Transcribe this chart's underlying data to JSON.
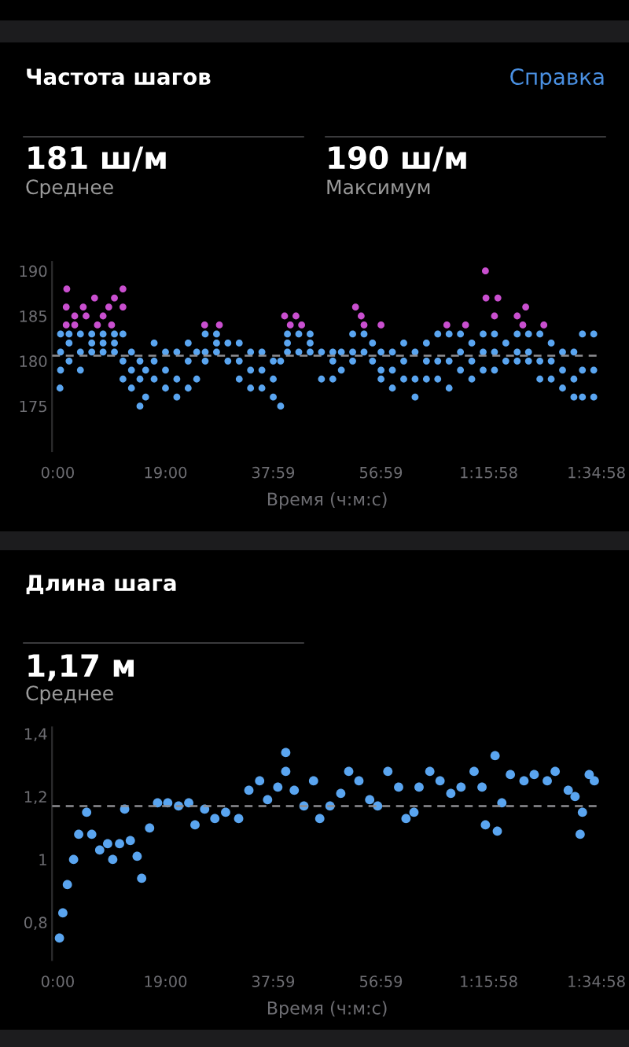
{
  "chart_data": [
    {
      "type": "scatter",
      "title": "Частота шагов",
      "xlabel": "Время (ч:м:с)",
      "annotations": [
        "Справка",
        "181 ш/м",
        "Среднее",
        "190 ш/м",
        "Максимум"
      ],
      "xlim": [
        -1,
        96
      ],
      "xticks": [
        {
          "value": 0,
          "label": "0:00"
        },
        {
          "value": 19,
          "label": "19:00"
        },
        {
          "value": 37.98,
          "label": "37:59"
        },
        {
          "value": 56.98,
          "label": "56:59"
        },
        {
          "value": 75.97,
          "label": "1:15:58"
        },
        {
          "value": 94.97,
          "label": "1:34:58"
        }
      ],
      "ylim": [
        170,
        191
      ],
      "yticks": [
        175,
        180,
        185,
        190
      ],
      "marker": "circle",
      "ref_lines": [
        {
          "axis": "y",
          "value": 180.6,
          "color": "#8e8e93",
          "line_style": "dashed"
        }
      ],
      "series": [
        {
          "color": "#5aa5f0",
          "x": [
            0.4,
            0.5,
            0.5,
            0.5,
            2,
            2,
            2,
            4,
            4,
            4,
            6,
            6,
            6,
            8,
            8,
            8,
            10,
            10,
            10,
            11.5,
            11.5,
            11.5,
            13,
            13,
            13,
            14.5,
            14.5,
            14.5,
            15.5,
            15.5,
            17,
            17,
            17,
            19,
            19,
            19,
            21,
            21,
            21,
            23,
            23,
            23,
            24.5,
            24.5,
            26,
            26,
            26,
            28,
            28,
            28,
            30,
            30,
            32,
            32,
            32,
            34,
            34,
            34,
            36,
            36,
            36,
            38,
            38,
            38,
            39.3,
            39.3,
            40.5,
            40.5,
            40.5,
            42.5,
            42.5,
            44.5,
            44.5,
            44.5,
            46.5,
            46.5,
            48.5,
            48.5,
            48.5,
            50,
            50,
            52,
            52,
            52,
            54,
            54,
            55.5,
            55.5,
            57,
            57,
            57,
            59,
            59,
            59,
            61,
            61,
            61,
            63,
            63,
            63,
            65,
            65,
            65,
            67,
            67,
            67,
            69,
            69,
            69,
            71,
            71,
            71,
            73,
            73,
            73,
            75,
            75,
            75,
            77,
            77,
            77,
            79,
            79,
            81,
            81,
            81,
            83,
            83,
            83,
            85,
            85,
            85,
            87,
            87,
            87,
            89,
            89,
            89,
            91,
            91,
            91,
            92.5,
            92.5,
            92.5,
            94.5,
            94.5,
            94.5
          ],
          "values": [
            177,
            183,
            181,
            179,
            183,
            182,
            180,
            183,
            181,
            179,
            183,
            182,
            181,
            183,
            182,
            181,
            183,
            182,
            181,
            183,
            180,
            178,
            181,
            179,
            177,
            180,
            178,
            175,
            179,
            176,
            182,
            180,
            178,
            181,
            179,
            177,
            181,
            178,
            176,
            182,
            180,
            177,
            181,
            178,
            183,
            181,
            180,
            183,
            182,
            181,
            182,
            180,
            182,
            180,
            178,
            181,
            179,
            177,
            181,
            179,
            177,
            180,
            178,
            176,
            180,
            175,
            183,
            182,
            181,
            183,
            181,
            183,
            182,
            181,
            181,
            178,
            181,
            180,
            178,
            181,
            179,
            183,
            181,
            180,
            183,
            181,
            182,
            180,
            181,
            179,
            178,
            181,
            179,
            177,
            182,
            180,
            178,
            181,
            178,
            176,
            182,
            180,
            178,
            183,
            180,
            178,
            183,
            180,
            177,
            183,
            181,
            179,
            182,
            180,
            178,
            183,
            181,
            179,
            183,
            181,
            179,
            182,
            180,
            183,
            181,
            180,
            183,
            181,
            180,
            183,
            180,
            178,
            182,
            180,
            178,
            181,
            179,
            177,
            181,
            178,
            176,
            183,
            179,
            176,
            183,
            179,
            176
          ]
        },
        {
          "color": "#c94fcf",
          "x": [
            1.5,
            1.5,
            1.6,
            3,
            3,
            4.5,
            5,
            6.5,
            7,
            8,
            9,
            9.5,
            10,
            11.5,
            11.5,
            25.9,
            28.5,
            40,
            41,
            42,
            43,
            52.5,
            53.5,
            54,
            57,
            68.6,
            71.9,
            75.4,
            75.5,
            77,
            77.6,
            81,
            82,
            82.5,
            85.7
          ],
          "values": [
            184,
            186,
            188,
            185,
            184,
            186,
            185,
            187,
            184,
            185,
            186,
            184,
            187,
            188,
            186,
            184,
            184,
            185,
            184,
            185,
            184,
            186,
            185,
            184,
            184,
            184,
            184,
            190,
            187,
            185,
            187,
            185,
            184,
            186,
            184
          ]
        }
      ]
    },
    {
      "type": "scatter",
      "title": "Длина шага",
      "xlabel": "Время (ч:м:с)",
      "annotations": [
        "1,17 м",
        "Среднее"
      ],
      "xlim": [
        -1,
        96
      ],
      "xticks": [
        {
          "value": 0,
          "label": "0:00"
        },
        {
          "value": 19,
          "label": "19:00"
        },
        {
          "value": 37.98,
          "label": "37:59"
        },
        {
          "value": 56.98,
          "label": "56:59"
        },
        {
          "value": 75.97,
          "label": "1:15:58"
        },
        {
          "value": 94.97,
          "label": "1:34:58"
        }
      ],
      "ylim": [
        0.68,
        1.42
      ],
      "yticks": [
        {
          "value": 0.8,
          "label": "0,8"
        },
        1,
        {
          "value": 1.2,
          "label": "1,2"
        },
        {
          "value": 1.4,
          "label": "1,4"
        }
      ],
      "marker": "circle",
      "ref_lines": [
        {
          "axis": "y",
          "value": 1.17,
          "color": "#8e8e93",
          "line_style": "dashed"
        }
      ],
      "series": [
        {
          "color": "#5aa5f0",
          "x": [
            0.3,
            0.9,
            1.7,
            2.8,
            3.7,
            5.1,
            6.0,
            7.4,
            8.8,
            9.7,
            10.9,
            11.8,
            12.8,
            14.0,
            14.8,
            16.2,
            17.6,
            19.4,
            21.3,
            23.1,
            24.2,
            25.9,
            27.7,
            29.6,
            31.9,
            33.7,
            35.6,
            37.0,
            38.8,
            40.2,
            40.2,
            41.7,
            43.4,
            45.1,
            46.2,
            48.0,
            49.9,
            51.3,
            53.1,
            55.0,
            56.4,
            58.2,
            60.1,
            61.4,
            62.8,
            63.7,
            65.6,
            67.4,
            69.3,
            71.1,
            73.4,
            74.8,
            75.4,
            77.1,
            77.5,
            78.3,
            79.8,
            82.2,
            84.0,
            86.3,
            87.7,
            90.0,
            91.2,
            92.1,
            92.5,
            93.7,
            94.6
          ],
          "values": [
            0.75,
            0.83,
            0.92,
            1.0,
            1.08,
            1.15,
            1.08,
            1.03,
            1.05,
            1.0,
            1.05,
            1.16,
            1.06,
            1.01,
            0.94,
            1.1,
            1.18,
            1.18,
            1.17,
            1.18,
            1.11,
            1.16,
            1.13,
            1.15,
            1.13,
            1.22,
            1.25,
            1.19,
            1.23,
            1.34,
            1.28,
            1.22,
            1.17,
            1.25,
            1.13,
            1.17,
            1.21,
            1.28,
            1.25,
            1.19,
            1.17,
            1.28,
            1.23,
            1.13,
            1.15,
            1.23,
            1.28,
            1.25,
            1.21,
            1.23,
            1.28,
            1.23,
            1.11,
            1.33,
            1.09,
            1.18,
            1.27,
            1.25,
            1.27,
            1.25,
            1.28,
            1.22,
            1.2,
            1.08,
            1.15,
            1.27,
            1.25
          ]
        }
      ]
    }
  ]
}
